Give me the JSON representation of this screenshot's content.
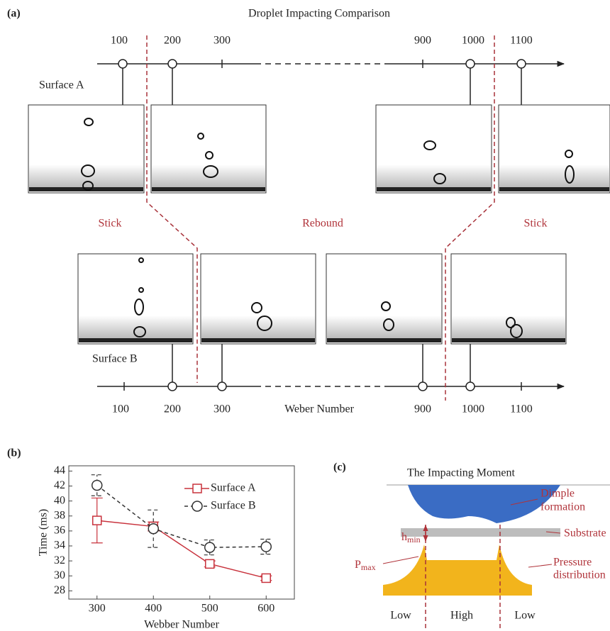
{
  "panel_a": {
    "label": "(a)",
    "title": "Droplet Impacting Comparison",
    "top_ticks": [
      "100",
      "200",
      "300",
      "900",
      "1000",
      "1100"
    ],
    "surface_a": "Surface A",
    "surface_b": "Surface B",
    "regions": [
      "Stick",
      "Rebound",
      "Stick"
    ],
    "bottom_ticks": [
      "100",
      "200",
      "300",
      "900",
      "1000",
      "1100"
    ],
    "axis_label": "Weber Number"
  },
  "chart_data": {
    "type": "line",
    "label": "(b)",
    "x_label": "Webber Number",
    "y_label": "Time (ms)",
    "x": [
      300,
      400,
      500,
      600
    ],
    "series": [
      {
        "name": "Surface A",
        "color": "#c8323c",
        "marker": "square",
        "line_style": "solid",
        "values": [
          37.4,
          36.6,
          31.6,
          29.7
        ],
        "errors": [
          3,
          0.6,
          0.4,
          0.3
        ]
      },
      {
        "name": "Surface B",
        "color": "#333333",
        "marker": "circle",
        "line_style": "dashed",
        "values": [
          42.1,
          36.3,
          33.8,
          33.9
        ],
        "errors": [
          1.4,
          2.5,
          1,
          1
        ]
      }
    ],
    "xlim": [
      250,
      650
    ],
    "xticks": [
      300,
      400,
      500,
      600
    ],
    "ylim": [
      26.9,
      44.7
    ],
    "yticks": [
      28,
      30,
      32,
      34,
      36,
      38,
      40,
      42,
      44
    ],
    "legend": "upper right"
  },
  "panel_c": {
    "label": "(c)",
    "title": "The Impacting Moment",
    "dimple": [
      "Dimple",
      "formation"
    ],
    "h": {
      "base": "h",
      "sub": "min"
    },
    "substrate": "Substrate",
    "p": {
      "base": "P",
      "sub": "max"
    },
    "pressure": [
      "Pressure",
      "distribution"
    ],
    "zones": [
      "Low",
      "High",
      "Low"
    ]
  }
}
